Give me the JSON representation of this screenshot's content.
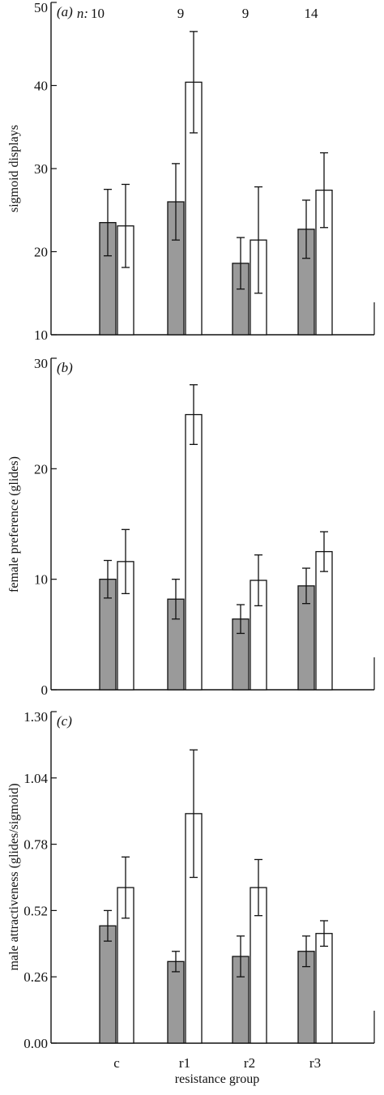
{
  "chart_data": [
    {
      "type": "bar",
      "panel_label": "(a)",
      "title": "",
      "xlabel": "",
      "ylabel": "sigmoid displays",
      "ylim": [
        10,
        50
      ],
      "yticks": [
        10,
        20,
        30,
        40,
        50
      ],
      "ytick_labels": [
        "10",
        "20",
        "30",
        "40",
        "50"
      ],
      "categories": [
        "c",
        "r1",
        "r2",
        "r3"
      ],
      "n_prefix": "n:",
      "n_values": [
        "10",
        "9",
        "9",
        "14"
      ],
      "series": [
        {
          "name": "",
          "fill": "#9a9a9a",
          "values": [
            23.5,
            26.0,
            18.6,
            22.7
          ],
          "errors": [
            4.0,
            4.6,
            3.1,
            3.5
          ]
        },
        {
          "name": "",
          "fill": "#ffffff",
          "values": [
            23.1,
            40.4,
            21.4,
            27.4
          ],
          "errors": [
            5.0,
            6.1,
            6.4,
            4.5
          ]
        }
      ]
    },
    {
      "type": "bar",
      "panel_label": "(b)",
      "title": "",
      "xlabel": "",
      "ylabel": "female preference (glides)",
      "ylim": [
        0,
        30
      ],
      "yticks": [
        0,
        10,
        20,
        30
      ],
      "ytick_labels": [
        "0",
        "10",
        "20",
        "30"
      ],
      "categories": [
        "c",
        "r1",
        "r2",
        "r3"
      ],
      "series": [
        {
          "name": "",
          "fill": "#9a9a9a",
          "values": [
            10.0,
            8.2,
            6.4,
            9.4
          ],
          "errors": [
            1.7,
            1.8,
            1.3,
            1.6
          ]
        },
        {
          "name": "",
          "fill": "#ffffff",
          "values": [
            11.6,
            24.9,
            9.9,
            12.5
          ],
          "errors": [
            2.9,
            2.7,
            2.3,
            1.8
          ]
        }
      ]
    },
    {
      "type": "bar",
      "panel_label": "(c)",
      "title": "",
      "xlabel": "resistance group",
      "ylabel": "male attractiveness (glides/sigmoid)",
      "ylim": [
        0,
        1.3
      ],
      "yticks": [
        0,
        0.26,
        0.52,
        0.78,
        1.04,
        1.3
      ],
      "ytick_labels": [
        "0.00",
        "0.26",
        "0.52",
        "0.78",
        "1.04",
        "1.30"
      ],
      "categories": [
        "c",
        "r1",
        "r2",
        "r3"
      ],
      "x_tick_labels": [
        "c",
        "r1",
        "r2",
        "r3"
      ],
      "series": [
        {
          "name": "",
          "fill": "#9a9a9a",
          "values": [
            0.46,
            0.32,
            0.34,
            0.36
          ],
          "errors": [
            0.06,
            0.04,
            0.08,
            0.06
          ]
        },
        {
          "name": "",
          "fill": "#ffffff",
          "values": [
            0.61,
            0.9,
            0.61,
            0.43
          ],
          "errors": [
            0.12,
            0.25,
            0.11,
            0.05
          ]
        }
      ]
    }
  ]
}
